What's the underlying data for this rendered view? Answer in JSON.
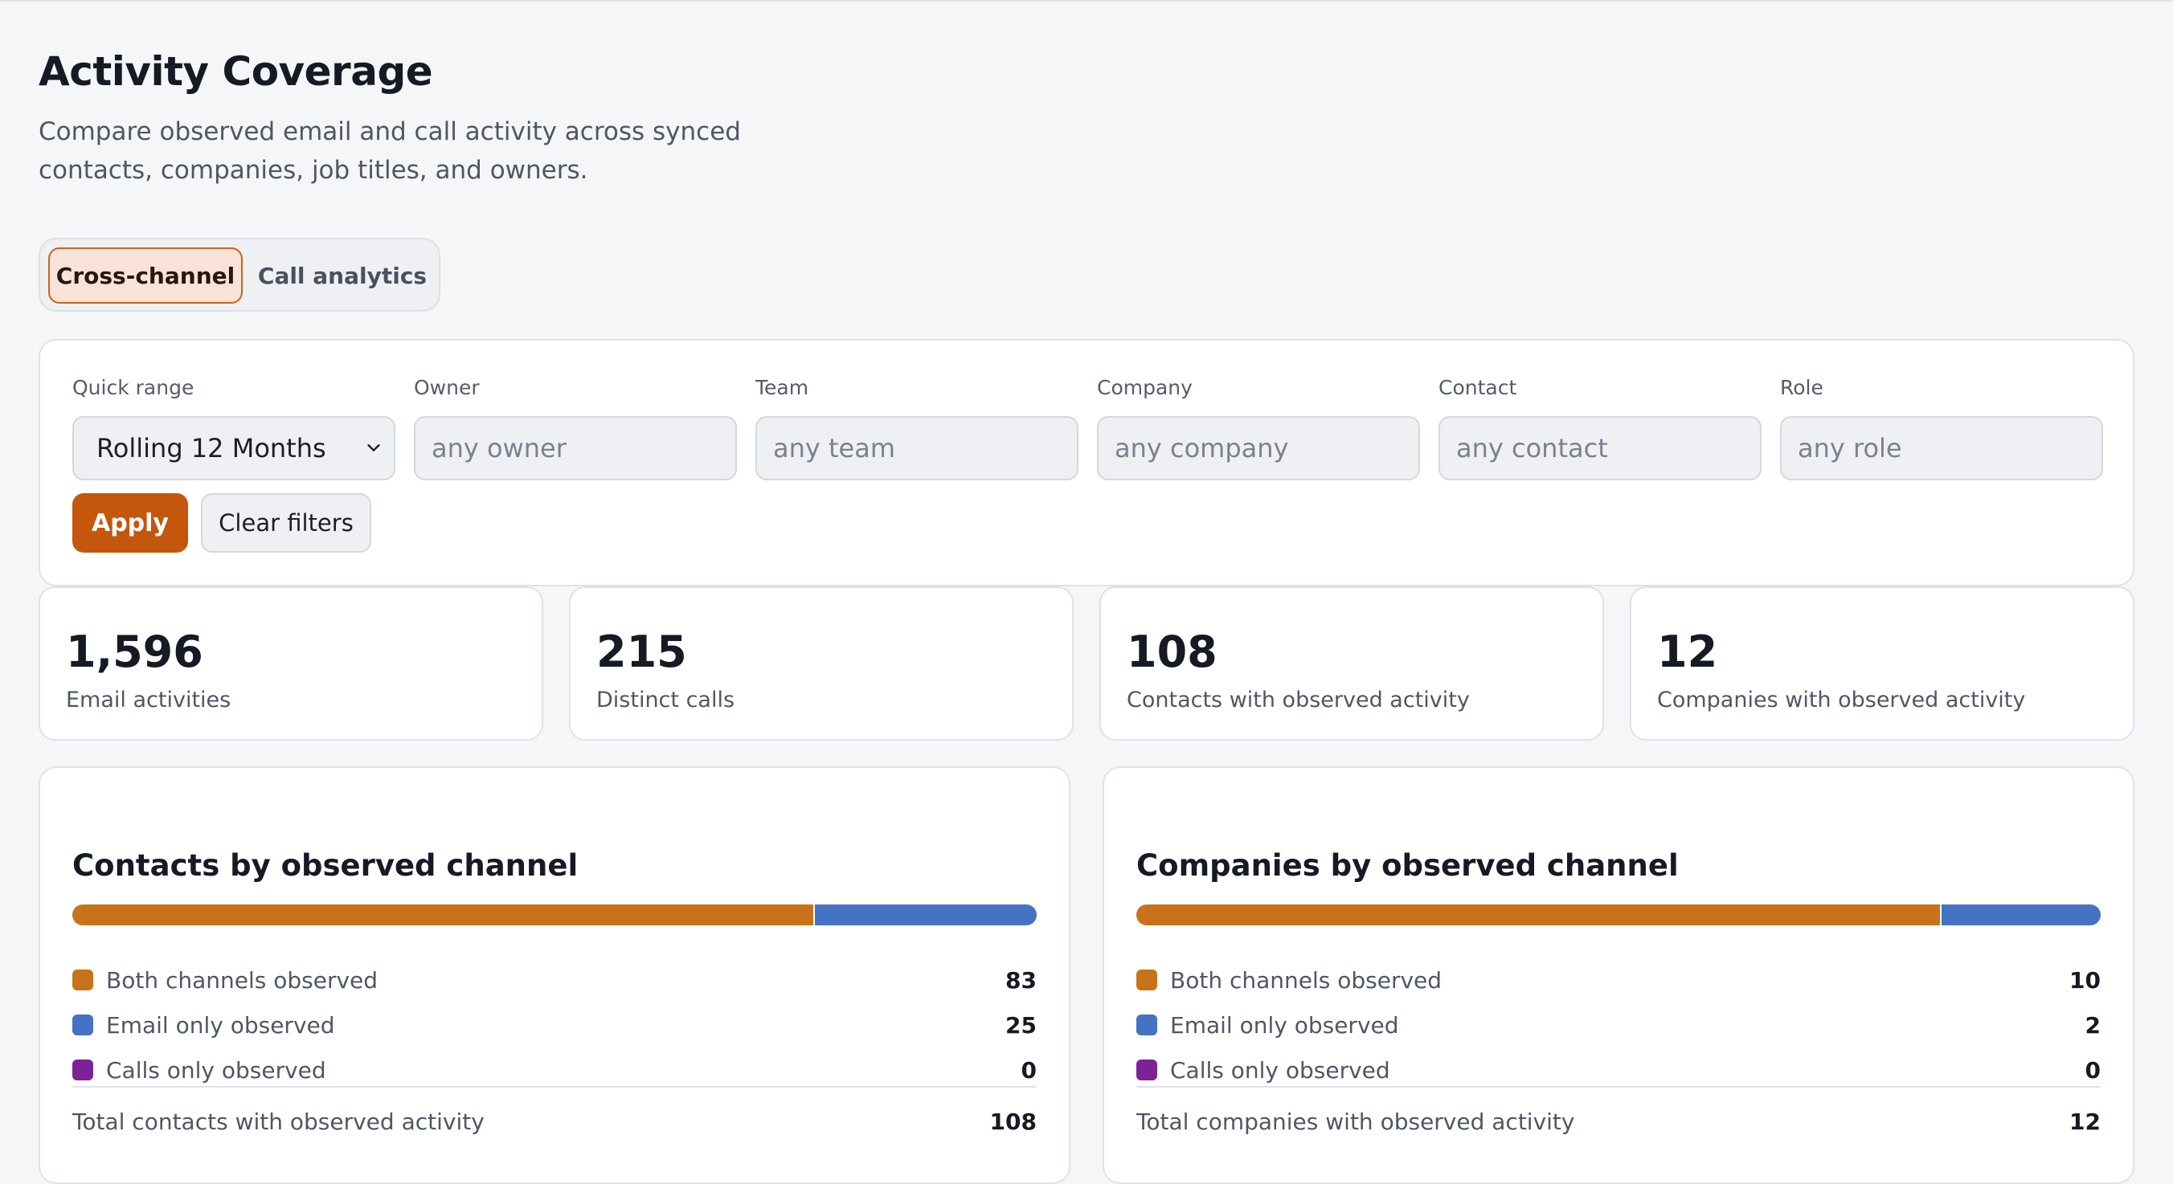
{
  "header": {
    "title": "Activity Coverage",
    "subtitle": "Compare observed email and call activity across synced contacts, companies, job titles, and owners."
  },
  "tabs": [
    {
      "label": "Cross-channel",
      "active": true
    },
    {
      "label": "Call analytics",
      "active": false
    }
  ],
  "filters": {
    "quick_range": {
      "label": "Quick range",
      "value": "Rolling 12 Months"
    },
    "owner": {
      "label": "Owner",
      "placeholder": "any owner"
    },
    "team": {
      "label": "Team",
      "placeholder": "any team"
    },
    "company": {
      "label": "Company",
      "placeholder": "any company"
    },
    "contact": {
      "label": "Contact",
      "placeholder": "any contact"
    },
    "role": {
      "label": "Role",
      "placeholder": "any role"
    },
    "apply_label": "Apply",
    "clear_label": "Clear filters"
  },
  "stats": [
    {
      "value": "1,596",
      "label": "Email activities"
    },
    {
      "value": "215",
      "label": "Distinct calls"
    },
    {
      "value": "108",
      "label": "Contacts with observed activity"
    },
    {
      "value": "12",
      "label": "Companies with observed activity"
    }
  ],
  "colors": {
    "both": "#c8731a",
    "email": "#4472c4",
    "calls": "#7b2396",
    "accent": "#c4570c"
  },
  "panels": [
    {
      "title": "Contacts by observed channel",
      "rows": [
        {
          "label": "Both channels observed",
          "value": "83",
          "key": "both"
        },
        {
          "label": "Email only observed",
          "value": "25",
          "key": "email"
        },
        {
          "label": "Calls only observed",
          "value": "0",
          "key": "calls"
        }
      ],
      "total_label": "Total contacts with observed activity",
      "total_value": "108"
    },
    {
      "title": "Companies by observed channel",
      "rows": [
        {
          "label": "Both channels observed",
          "value": "10",
          "key": "both"
        },
        {
          "label": "Email only observed",
          "value": "2",
          "key": "email"
        },
        {
          "label": "Calls only observed",
          "value": "0",
          "key": "calls"
        }
      ],
      "total_label": "Total companies with observed activity",
      "total_value": "12"
    }
  ]
}
